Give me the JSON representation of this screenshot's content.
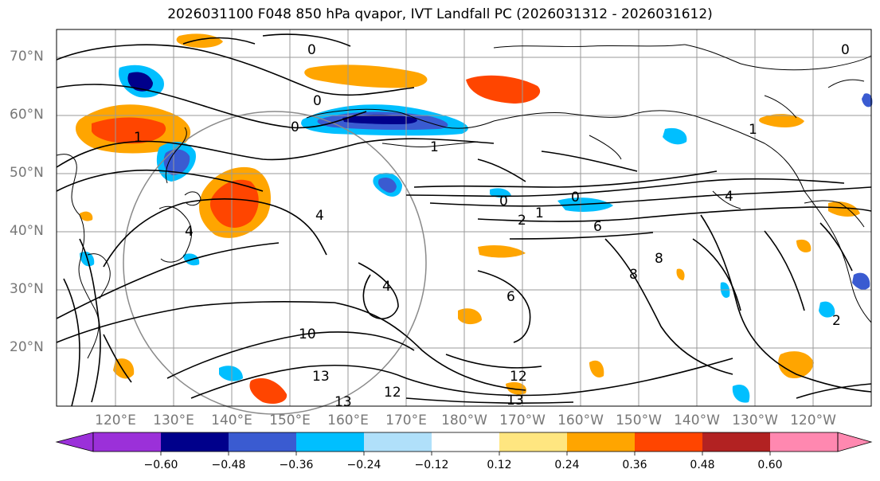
{
  "title": "2026031100 F048 850 hPa qvapor, IVT Landfall PC (2026031312 - 2026031612)",
  "lat_labels": [
    "70°N",
    "60°N",
    "50°N",
    "40°N",
    "30°N",
    "20°N"
  ],
  "lon_labels": [
    "120°E",
    "130°E",
    "140°E",
    "150°E",
    "160°E",
    "170°E",
    "180°W",
    "170°W",
    "160°W",
    "150°W",
    "140°W",
    "130°W",
    "120°W"
  ],
  "contour_labels": [
    "0",
    "0",
    "0",
    "0",
    "0",
    "0",
    "1",
    "1",
    "1",
    "1",
    "2",
    "2",
    "4",
    "4",
    "4",
    "4",
    "6",
    "6",
    "8",
    "8",
    "10",
    "12",
    "12",
    "13",
    "13",
    "13"
  ],
  "colorbar": {
    "ticks": [
      "−0.60",
      "−0.48",
      "−0.36",
      "−0.24",
      "−0.12",
      "0.12",
      "0.24",
      "0.36",
      "0.48",
      "0.60"
    ],
    "colors": [
      "#9b30d9",
      "#00008b",
      "#3a5bd1",
      "#00bfff",
      "#b0e0fa",
      "#ffffff",
      "#ffe680",
      "#ffa500",
      "#ff4500",
      "#b22222",
      "#ff88b0"
    ]
  },
  "map_colors": {
    "pos_light": "#ffe680",
    "pos_mid": "#ffa500",
    "pos_strong": "#ff4500",
    "neg_light": "#b0e0fa",
    "neg_mid": "#00bfff",
    "neg_strong": "#3a5bd1",
    "neg_darkest": "#00008b"
  }
}
